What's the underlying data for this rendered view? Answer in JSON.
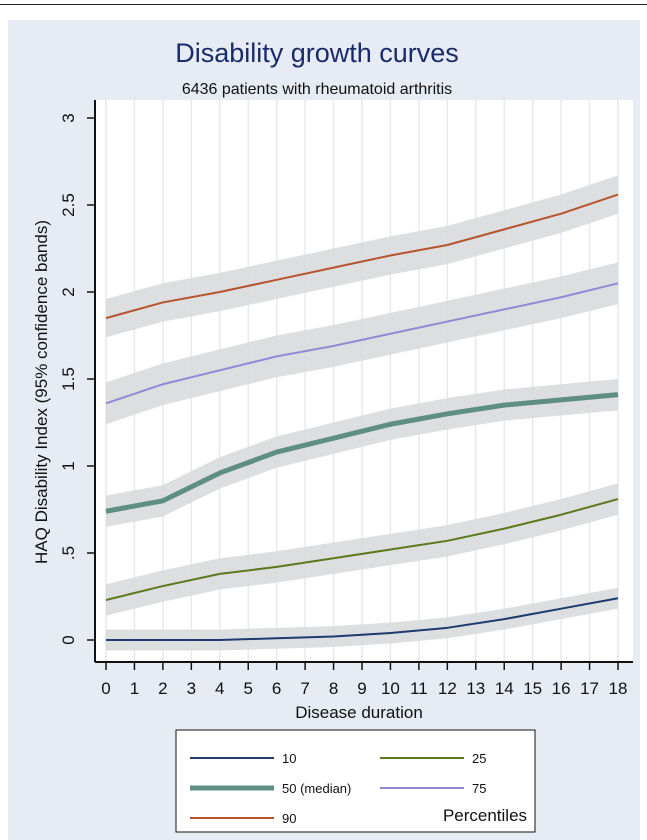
{
  "chart_data": {
    "type": "line",
    "title": "Disability growth curves",
    "subtitle": "6436 patients with rheumatoid arthritis",
    "xlabel": "Disease duration",
    "ylabel": "HAQ Disability Index (95% confidence bands)",
    "x_ticks": [
      "0",
      "1",
      "2",
      "3",
      "4",
      "5",
      "6",
      "7",
      "8",
      "9",
      "10",
      "11",
      "12",
      "13",
      "14",
      "15",
      "16",
      "17",
      "18"
    ],
    "y_ticks": [
      "0",
      ".5",
      "1",
      "1.5",
      "2",
      "2.5",
      "3"
    ],
    "xlim": [
      0,
      18
    ],
    "ylim": [
      0,
      3
    ],
    "grid": "vertical",
    "x": [
      0,
      2,
      4,
      6,
      8,
      10,
      12,
      14,
      16,
      18
    ],
    "series": [
      {
        "name": "10",
        "color": "#1f3a6e",
        "width": 2,
        "band": 0.06,
        "values": [
          0.0,
          0.0,
          0.0,
          0.01,
          0.02,
          0.04,
          0.07,
          0.12,
          0.18,
          0.24
        ]
      },
      {
        "name": "25",
        "color": "#5a7a1e",
        "width": 2,
        "band": 0.09,
        "values": [
          0.23,
          0.31,
          0.38,
          0.42,
          0.47,
          0.52,
          0.57,
          0.64,
          0.72,
          0.81
        ]
      },
      {
        "name": "50 (median)",
        "color": "#5e8f80",
        "width": 5,
        "band": 0.09,
        "values": [
          0.74,
          0.8,
          0.96,
          1.08,
          1.16,
          1.24,
          1.3,
          1.35,
          1.38,
          1.41
        ]
      },
      {
        "name": "75",
        "color": "#9488d6",
        "width": 2,
        "band": 0.12,
        "values": [
          1.36,
          1.47,
          1.55,
          1.63,
          1.69,
          1.76,
          1.83,
          1.9,
          1.97,
          2.05
        ]
      },
      {
        "name": "90",
        "color": "#b5542e",
        "width": 2,
        "band": 0.11,
        "values": [
          1.85,
          1.94,
          2.0,
          2.07,
          2.14,
          2.21,
          2.27,
          2.36,
          2.45,
          2.56
        ]
      }
    ],
    "legend": {
      "title": "Percentiles",
      "placement": "bottom"
    }
  }
}
